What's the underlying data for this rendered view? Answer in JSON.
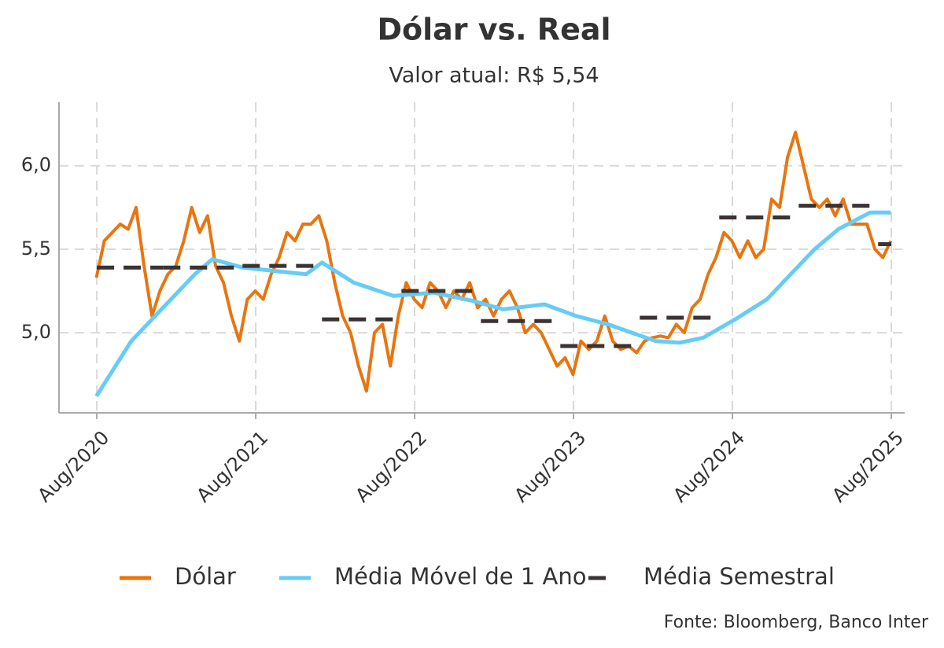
{
  "chart_data": {
    "type": "line",
    "title": "Dólar vs. Real",
    "subtitle": "Valor atual: R$ 5,54",
    "source": "Fonte: Bloomberg, Banco Inter",
    "xlim": [
      2020.345,
      2025.667
    ],
    "xticks": [
      {
        "value": 2020.583,
        "label": "Aug/2020"
      },
      {
        "value": 2021.583,
        "label": "Aug/2021"
      },
      {
        "value": 2022.583,
        "label": "Aug/2022"
      },
      {
        "value": 2023.583,
        "label": "Aug/2023"
      },
      {
        "value": 2024.583,
        "label": "Aug/2024"
      },
      {
        "value": 2025.583,
        "label": "Aug/2025"
      }
    ],
    "ylim": [
      4.52,
      6.38
    ],
    "yticks": [
      {
        "value": 5,
        "label": "5,0"
      },
      {
        "value": 5.5,
        "label": "5,5"
      },
      {
        "value": 6,
        "label": "6,0"
      }
    ],
    "grid": true,
    "legend": "bottom",
    "series": [
      {
        "name": "Dólar",
        "color": "#e8750f",
        "style": "solid",
        "x": [
          2020.58,
          2020.63,
          2020.68,
          2020.73,
          2020.78,
          2020.83,
          2020.88,
          2020.93,
          2020.98,
          2021.03,
          2021.08,
          2021.13,
          2021.18,
          2021.23,
          2021.28,
          2021.33,
          2021.38,
          2021.43,
          2021.48,
          2021.53,
          2021.58,
          2021.63,
          2021.68,
          2021.73,
          2021.78,
          2021.83,
          2021.88,
          2021.93,
          2021.98,
          2022.03,
          2022.08,
          2022.13,
          2022.18,
          2022.23,
          2022.28,
          2022.33,
          2022.38,
          2022.43,
          2022.48,
          2022.53,
          2022.58,
          2022.63,
          2022.68,
          2022.73,
          2022.78,
          2022.83,
          2022.88,
          2022.93,
          2022.98,
          2023.03,
          2023.08,
          2023.13,
          2023.18,
          2023.23,
          2023.28,
          2023.33,
          2023.38,
          2023.43,
          2023.48,
          2023.53,
          2023.58,
          2023.63,
          2023.68,
          2023.73,
          2023.78,
          2023.83,
          2023.88,
          2023.93,
          2023.98,
          2024.03,
          2024.08,
          2024.13,
          2024.18,
          2024.23,
          2024.28,
          2024.33,
          2024.38,
          2024.43,
          2024.48,
          2024.53,
          2024.58,
          2024.63,
          2024.68,
          2024.73,
          2024.78,
          2024.83,
          2024.88,
          2024.93,
          2024.98,
          2025.03,
          2025.08,
          2025.13,
          2025.18,
          2025.23,
          2025.28,
          2025.33,
          2025.38,
          2025.43,
          2025.48,
          2025.53,
          2025.58
        ],
        "values": [
          5.33,
          5.55,
          5.6,
          5.65,
          5.62,
          5.75,
          5.4,
          5.1,
          5.25,
          5.35,
          5.4,
          5.55,
          5.75,
          5.6,
          5.7,
          5.4,
          5.3,
          5.1,
          4.95,
          5.2,
          5.25,
          5.2,
          5.35,
          5.45,
          5.6,
          5.55,
          5.65,
          5.65,
          5.7,
          5.55,
          5.3,
          5.1,
          5.0,
          4.8,
          4.65,
          5.0,
          5.05,
          4.8,
          5.1,
          5.3,
          5.2,
          5.15,
          5.3,
          5.25,
          5.15,
          5.25,
          5.2,
          5.3,
          5.15,
          5.2,
          5.1,
          5.2,
          5.25,
          5.15,
          5.0,
          5.05,
          5.0,
          4.9,
          4.8,
          4.85,
          4.75,
          4.95,
          4.9,
          4.95,
          5.1,
          4.95,
          4.9,
          4.92,
          4.88,
          4.95,
          4.97,
          4.98,
          4.97,
          5.05,
          5.0,
          5.15,
          5.2,
          5.35,
          5.45,
          5.6,
          5.55,
          5.45,
          5.55,
          5.45,
          5.5,
          5.8,
          5.75,
          6.05,
          6.2,
          6.0,
          5.8,
          5.75,
          5.8,
          5.7,
          5.8,
          5.65,
          5.65,
          5.65,
          5.5,
          5.45,
          5.55
        ]
      },
      {
        "name": "Média Móvel de 1 Ano",
        "color": "#66ccf5",
        "style": "solid",
        "x": [
          2020.58,
          2020.8,
          2021.0,
          2021.2,
          2021.31,
          2021.5,
          2021.7,
          2021.9,
          2022.0,
          2022.2,
          2022.45,
          2022.7,
          2022.95,
          2023.14,
          2023.4,
          2023.6,
          2023.8,
          2023.95,
          2024.1,
          2024.25,
          2024.4,
          2024.6,
          2024.8,
          2024.95,
          2025.1,
          2025.25,
          2025.45,
          2025.58
        ],
        "values": [
          4.62,
          4.95,
          5.15,
          5.35,
          5.44,
          5.39,
          5.37,
          5.35,
          5.42,
          5.3,
          5.22,
          5.24,
          5.19,
          5.14,
          5.17,
          5.1,
          5.05,
          5.0,
          4.95,
          4.94,
          4.97,
          5.08,
          5.2,
          5.35,
          5.5,
          5.62,
          5.72,
          5.72
        ]
      },
      {
        "name": "Média Semestral",
        "color": "#3b3333",
        "style": "segments",
        "x": [
          2020.583,
          2021.0,
          2021.5,
          2022.0,
          2022.5,
          2023.0,
          2023.5,
          2024.0,
          2024.5,
          2025.0,
          2025.5
        ],
        "x_end": [
          2021.0,
          2021.5,
          2022.0,
          2022.5,
          2023.0,
          2023.5,
          2024.0,
          2024.5,
          2025.0,
          2025.5,
          2025.583
        ],
        "values": [
          5.39,
          5.39,
          5.4,
          5.08,
          5.25,
          5.07,
          4.92,
          5.09,
          5.69,
          5.76,
          5.53
        ]
      }
    ]
  }
}
